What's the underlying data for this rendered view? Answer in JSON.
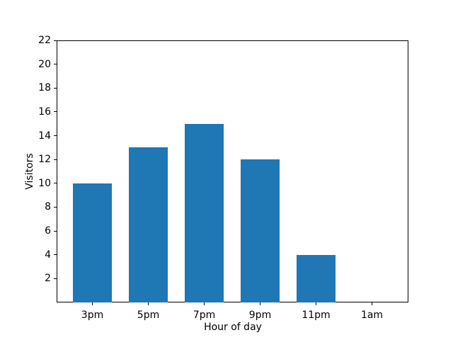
{
  "figure": {
    "background_color": "#ffffff",
    "text_color": "#000000",
    "spine_color": "#000000"
  },
  "chart_data": {
    "type": "bar",
    "title": "",
    "categories": [
      "3pm",
      "5pm",
      "7pm",
      "9pm",
      "11pm",
      "1am"
    ],
    "values": [
      10,
      13,
      15,
      12,
      4,
      0
    ],
    "xlabel": "Hour of day",
    "ylabel": "Visitors",
    "ylim": [
      0,
      22
    ],
    "yticks": [
      2,
      4,
      6,
      8,
      10,
      12,
      14,
      16,
      18,
      20,
      22
    ],
    "bar_color": "#1f77b4",
    "grid": false,
    "legend_position": "none"
  }
}
